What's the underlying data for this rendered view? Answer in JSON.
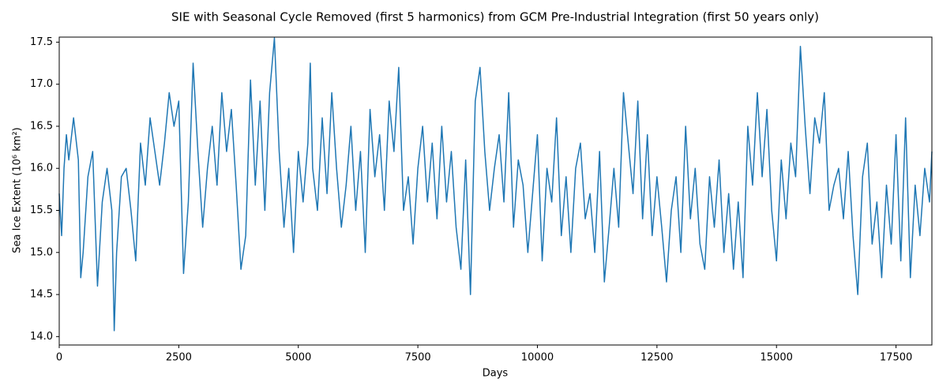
{
  "chart_data": {
    "type": "line",
    "title": "SIE with Seasonal Cycle Removed (first 5 harmonics) from GCM Pre-Industrial Integration (first 50 years only)",
    "xlabel": "Days",
    "ylabel": "Sea Ice Extent (10⁶ km²)",
    "xlim": [
      0,
      18250
    ],
    "ylim": [
      13.9,
      17.56
    ],
    "xticks": [
      0,
      2500,
      5000,
      7500,
      10000,
      12500,
      15000,
      17500
    ],
    "yticks": [
      {
        "value": 14.0,
        "label": "14.0"
      },
      {
        "value": 14.5,
        "label": "14.5"
      },
      {
        "value": 15.0,
        "label": "15.0"
      },
      {
        "value": 15.5,
        "label": "15.5"
      },
      {
        "value": 16.0,
        "label": "16.0"
      },
      {
        "value": 16.5,
        "label": "16.5"
      },
      {
        "value": 17.0,
        "label": "17.0"
      },
      {
        "value": 17.5,
        "label": "17.5"
      }
    ],
    "grid": false,
    "series": [
      {
        "color": "#1f77b4",
        "x": [
          0,
          50,
          100,
          150,
          200,
          300,
          400,
          450,
          500,
          600,
          700,
          800,
          900,
          1000,
          1100,
          1150,
          1200,
          1300,
          1400,
          1500,
          1600,
          1700,
          1800,
          1900,
          2000,
          2100,
          2200,
          2300,
          2400,
          2500,
          2600,
          2700,
          2800,
          2900,
          3000,
          3100,
          3200,
          3300,
          3400,
          3500,
          3600,
          3700,
          3800,
          3900,
          4000,
          4100,
          4200,
          4300,
          4400,
          4500,
          4600,
          4700,
          4800,
          4900,
          5000,
          5100,
          5200,
          5250,
          5300,
          5400,
          5500,
          5600,
          5700,
          5800,
          5900,
          6000,
          6100,
          6200,
          6300,
          6400,
          6500,
          6600,
          6700,
          6800,
          6900,
          7000,
          7100,
          7200,
          7300,
          7400,
          7500,
          7600,
          7700,
          7800,
          7900,
          8000,
          8100,
          8200,
          8300,
          8400,
          8500,
          8600,
          8700,
          8800,
          8900,
          9000,
          9100,
          9200,
          9300,
          9400,
          9500,
          9600,
          9700,
          9800,
          9900,
          10000,
          10100,
          10200,
          10300,
          10400,
          10500,
          10600,
          10700,
          10800,
          10900,
          11000,
          11100,
          11200,
          11300,
          11400,
          11500,
          11600,
          11700,
          11800,
          11900,
          12000,
          12100,
          12200,
          12300,
          12400,
          12500,
          12600,
          12700,
          12800,
          12900,
          13000,
          13100,
          13200,
          13300,
          13400,
          13500,
          13600,
          13700,
          13800,
          13900,
          14000,
          14100,
          14200,
          14300,
          14400,
          14500,
          14600,
          14700,
          14800,
          14900,
          15000,
          15100,
          15200,
          15300,
          15400,
          15500,
          15600,
          15700,
          15800,
          15900,
          16000,
          16100,
          16200,
          16300,
          16400,
          16500,
          16600,
          16700,
          16800,
          16900,
          17000,
          17100,
          17200,
          17300,
          17400,
          17500,
          17600,
          17700,
          17800,
          17900,
          18000,
          18100,
          18200,
          18250
        ],
        "values": [
          15.7,
          15.2,
          16.0,
          16.4,
          16.1,
          16.6,
          16.1,
          14.7,
          15.0,
          15.9,
          16.2,
          14.6,
          15.6,
          16.0,
          15.5,
          14.07,
          15.0,
          15.9,
          16.0,
          15.5,
          14.9,
          16.3,
          15.8,
          16.6,
          16.2,
          15.8,
          16.3,
          16.9,
          16.5,
          16.8,
          14.75,
          15.6,
          17.25,
          16.2,
          15.3,
          16.0,
          16.5,
          15.8,
          16.9,
          16.2,
          16.7,
          15.8,
          14.8,
          15.2,
          17.05,
          15.8,
          16.8,
          15.5,
          16.9,
          17.55,
          16.2,
          15.3,
          16.0,
          15.0,
          16.2,
          15.6,
          16.3,
          17.25,
          16.0,
          15.5,
          16.6,
          15.7,
          16.9,
          16.0,
          15.3,
          15.8,
          16.5,
          15.5,
          16.2,
          15.0,
          16.7,
          15.9,
          16.4,
          15.5,
          16.8,
          16.2,
          17.2,
          15.5,
          15.9,
          15.1,
          16.0,
          16.5,
          15.6,
          16.3,
          15.4,
          16.5,
          15.6,
          16.2,
          15.3,
          14.8,
          16.1,
          14.5,
          16.8,
          17.2,
          16.2,
          15.5,
          16.0,
          16.4,
          15.6,
          16.9,
          15.3,
          16.1,
          15.8,
          15.0,
          15.7,
          16.4,
          14.9,
          16.0,
          15.6,
          16.6,
          15.2,
          15.9,
          15.0,
          16.0,
          16.3,
          15.4,
          15.7,
          15.0,
          16.2,
          14.65,
          15.3,
          16.0,
          15.3,
          16.9,
          16.3,
          15.7,
          16.8,
          15.4,
          16.4,
          15.2,
          15.9,
          15.3,
          14.65,
          15.5,
          15.9,
          15.0,
          16.5,
          15.4,
          16.0,
          15.1,
          14.8,
          15.9,
          15.3,
          16.1,
          15.0,
          15.7,
          14.8,
          15.6,
          14.7,
          16.5,
          15.8,
          16.9,
          15.9,
          16.7,
          15.5,
          14.9,
          16.1,
          15.4,
          16.3,
          15.9,
          17.45,
          16.5,
          15.7,
          16.6,
          16.3,
          16.9,
          15.5,
          15.8,
          16.0,
          15.4,
          16.2,
          15.2,
          14.5,
          15.9,
          16.3,
          15.1,
          15.6,
          14.7,
          15.8,
          15.1,
          16.4,
          14.9,
          16.6,
          14.7,
          15.8,
          15.2,
          16.0,
          15.6,
          16.2
        ]
      }
    ]
  }
}
